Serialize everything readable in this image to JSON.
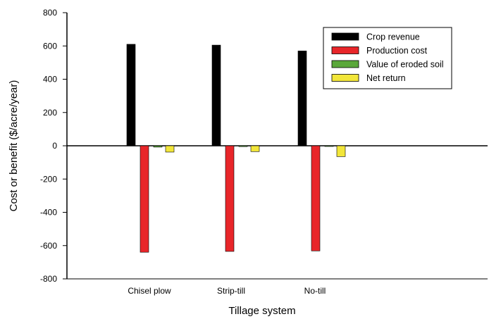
{
  "chart_data": {
    "type": "bar",
    "title": "",
    "xlabel": "Tillage system",
    "ylabel": "Cost or benefit ($/acre/year)",
    "ylim": [
      -800,
      800
    ],
    "yticks": [
      800,
      600,
      400,
      200,
      0,
      -200,
      -400,
      -600,
      -800
    ],
    "categories": [
      "Chisel plow",
      "Strip-till",
      "No-till"
    ],
    "series": [
      {
        "name": "Crop revenue",
        "color": "#000000",
        "values": [
          610,
          605,
          570
        ]
      },
      {
        "name": "Production cost",
        "color": "#e8262a",
        "values": [
          -640,
          -635,
          -632
        ]
      },
      {
        "name": "Value of eroded soil",
        "color": "#5aa83a",
        "values": [
          -8,
          -5,
          -3
        ]
      },
      {
        "name": "Net return",
        "color": "#f2e63a",
        "values": [
          -38,
          -35,
          -65
        ]
      }
    ],
    "legend_position": "top-right",
    "grid": false
  }
}
